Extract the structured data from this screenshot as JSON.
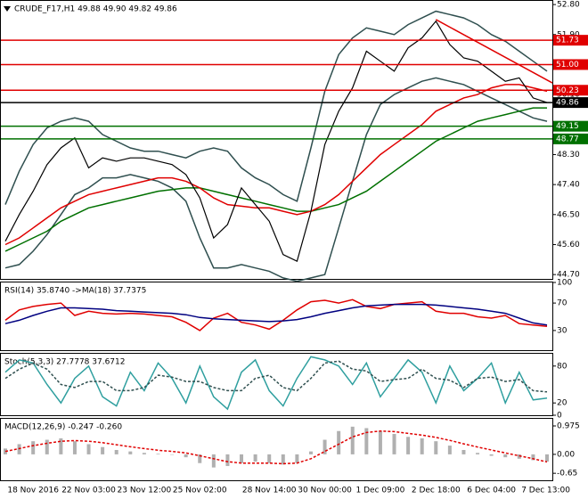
{
  "chart_data": [
    {
      "type": "line",
      "title": "CRUDE_F17,H1 49.88 49.90 49.82 49.86",
      "ylim": [
        44.57,
        52.91
      ],
      "yticks": [
        {
          "value": 52.8,
          "label": "52.80"
        },
        {
          "value": 51.9,
          "label": "51.90"
        },
        {
          "value": 51.0,
          "label": "51.00"
        },
        {
          "value": 50.1,
          "label": "50.10"
        },
        {
          "value": 49.2,
          "label": "49.20"
        },
        {
          "value": 48.3,
          "label": "48.30"
        },
        {
          "value": 47.4,
          "label": "47.40"
        },
        {
          "value": 46.5,
          "label": "46.50"
        },
        {
          "value": 45.6,
          "label": "45.60"
        },
        {
          "value": 44.7,
          "label": "44.70"
        }
      ],
      "series": [
        {
          "name": "Upper band",
          "color": "#2f4f4f",
          "values": [
            46.8,
            47.8,
            48.6,
            49.1,
            49.3,
            49.4,
            49.3,
            48.9,
            48.7,
            48.5,
            48.4,
            48.4,
            48.3,
            48.2,
            48.4,
            48.5,
            48.4,
            47.9,
            47.6,
            47.4,
            47.1,
            46.9,
            48.5,
            50.2,
            51.3,
            51.8,
            52.1,
            52.0,
            51.9,
            52.2,
            52.4,
            52.6,
            52.5,
            52.4,
            52.2,
            51.9,
            51.7,
            51.4,
            51.1,
            50.8
          ]
        },
        {
          "name": "Lower band",
          "color": "#2f4f4f",
          "values": [
            44.9,
            45.0,
            45.4,
            45.9,
            46.5,
            47.1,
            47.3,
            47.6,
            47.6,
            47.7,
            47.6,
            47.5,
            47.3,
            46.9,
            45.8,
            44.9,
            44.9,
            45.0,
            44.9,
            44.8,
            44.6,
            44.5,
            44.6,
            44.7,
            46.1,
            47.5,
            48.9,
            49.8,
            50.1,
            50.3,
            50.5,
            50.6,
            50.5,
            50.4,
            50.2,
            50.0,
            49.8,
            49.6,
            49.4,
            49.3
          ]
        },
        {
          "name": "Green MA",
          "color": "#007000",
          "values": [
            45.4,
            45.6,
            45.8,
            46.0,
            46.3,
            46.5,
            46.7,
            46.8,
            46.9,
            47.0,
            47.1,
            47.2,
            47.25,
            47.3,
            47.3,
            47.2,
            47.1,
            47.0,
            46.9,
            46.8,
            46.7,
            46.6,
            46.6,
            46.7,
            46.8,
            47.0,
            47.2,
            47.5,
            47.8,
            48.1,
            48.4,
            48.7,
            48.9,
            49.1,
            49.3,
            49.4,
            49.5,
            49.6,
            49.7,
            49.7
          ]
        },
        {
          "name": "Red MA",
          "color": "#e00000",
          "values": [
            45.6,
            45.8,
            46.1,
            46.4,
            46.7,
            46.9,
            47.1,
            47.2,
            47.3,
            47.4,
            47.5,
            47.6,
            47.6,
            47.5,
            47.3,
            47.0,
            46.8,
            46.75,
            46.7,
            46.7,
            46.6,
            46.5,
            46.6,
            46.8,
            47.1,
            47.5,
            47.9,
            48.3,
            48.6,
            48.9,
            49.2,
            49.6,
            49.8,
            50.0,
            50.1,
            50.3,
            50.4,
            50.4,
            50.3,
            50.2
          ]
        },
        {
          "name": "Close",
          "color": "#000000",
          "values": [
            45.7,
            46.5,
            47.2,
            48.0,
            48.5,
            48.8,
            47.9,
            48.2,
            48.1,
            48.2,
            48.2,
            48.1,
            48.0,
            47.7,
            47.0,
            45.8,
            46.2,
            47.3,
            46.8,
            46.3,
            45.3,
            45.1,
            46.6,
            48.6,
            49.6,
            50.3,
            51.4,
            51.1,
            50.8,
            51.5,
            51.8,
            52.3,
            51.6,
            51.2,
            51.1,
            50.8,
            50.5,
            50.6,
            50.0,
            49.86
          ]
        }
      ],
      "levels": [
        {
          "value": 51.73,
          "color": "#e00000"
        },
        {
          "value": 51.0,
          "label": "51.00",
          "color": "#e00000"
        },
        {
          "value": 50.23,
          "color": "#e00000"
        },
        {
          "value": 49.86,
          "color": "#000000"
        },
        {
          "value": 49.15,
          "color": "#007000"
        },
        {
          "value": 48.77,
          "color": "#007000"
        }
      ],
      "trendline": {
        "color": "#e00000",
        "x": [
          31,
          40
        ],
        "values": [
          52.35,
          50.45
        ]
      }
    },
    {
      "type": "line",
      "title": "RSI(14) 35.8740 ->MA(18) 37.7375",
      "ylim": [
        0,
        100
      ],
      "yticks": [
        100,
        70,
        30
      ],
      "series": [
        {
          "name": "RSI",
          "color": "#e00000",
          "values": [
            45,
            60,
            65,
            68,
            70,
            52,
            58,
            55,
            54,
            55,
            54,
            52,
            50,
            42,
            30,
            48,
            55,
            42,
            38,
            32,
            45,
            60,
            72,
            74,
            70,
            75,
            65,
            62,
            68,
            70,
            72,
            58,
            55,
            55,
            50,
            48,
            52,
            40,
            38,
            36
          ]
        },
        {
          "name": "MA",
          "color": "#000080",
          "values": [
            40,
            45,
            52,
            58,
            63,
            63,
            62,
            61,
            59,
            58,
            57,
            56,
            55,
            53,
            49,
            47,
            46,
            45,
            44,
            43,
            44,
            46,
            50,
            55,
            59,
            63,
            66,
            67,
            68,
            68,
            68,
            67,
            65,
            63,
            61,
            58,
            55,
            48,
            41,
            38
          ]
        }
      ]
    },
    {
      "type": "line",
      "title": "Stoch(5,3,3) 27.7778 37.6712",
      "ylim": [
        0,
        100
      ],
      "yticks": [
        80,
        20,
        0
      ],
      "series": [
        {
          "name": "Main",
          "color": "#2f9f9f",
          "values": [
            70,
            90,
            85,
            50,
            20,
            60,
            80,
            30,
            15,
            70,
            40,
            85,
            60,
            20,
            80,
            30,
            10,
            70,
            90,
            40,
            15,
            60,
            95,
            90,
            80,
            50,
            85,
            30,
            60,
            90,
            70,
            20,
            80,
            40,
            60,
            85,
            20,
            70,
            25,
            28
          ]
        },
        {
          "name": "Signal",
          "color": "#2f4f4f",
          "dash": true,
          "values": [
            60,
            75,
            85,
            75,
            50,
            45,
            55,
            55,
            40,
            40,
            45,
            65,
            62,
            55,
            55,
            45,
            40,
            40,
            60,
            65,
            45,
            40,
            60,
            85,
            88,
            75,
            72,
            55,
            58,
            60,
            75,
            60,
            57,
            45,
            60,
            62,
            55,
            58,
            40,
            38
          ]
        }
      ]
    },
    {
      "type": "bar",
      "title": "MACD(12,26,9) -0.247 -0.260",
      "ylim": [
        -0.89,
        1.22
      ],
      "yticks": [
        0.975,
        {
          "value": 0,
          "label": "0.00"
        },
        -0.65
      ],
      "categories": [
        null,
        null,
        "18 Nov 2016",
        null,
        null,
        null,
        "22 Nov 03:00",
        null,
        null,
        null,
        "23 Nov 12:00",
        null,
        null,
        null,
        "25 Nov 02:00",
        null,
        null,
        null,
        null,
        "28 Nov 14:00",
        null,
        null,
        null,
        "30 Nov 00:00",
        null,
        null,
        null,
        "1 Dec 09:00",
        null,
        null,
        null,
        "2 Dec 18:00",
        null,
        null,
        null,
        "6 Dec 04:00",
        null,
        null,
        null,
        "7 Dec 13:00"
      ],
      "series": [
        {
          "name": "MACD",
          "color": "#b0b0b0",
          "type": "bar",
          "values": [
            0.2,
            0.35,
            0.45,
            0.5,
            0.55,
            0.45,
            0.35,
            0.25,
            0.15,
            0.1,
            0.05,
            0.02,
            0,
            -0.1,
            -0.3,
            -0.45,
            -0.4,
            -0.3,
            -0.25,
            -0.3,
            -0.35,
            -0.3,
            0.1,
            0.5,
            0.8,
            0.95,
            0.9,
            0.8,
            0.7,
            0.6,
            0.55,
            0.45,
            0.3,
            0.15,
            0.05,
            -0.05,
            -0.1,
            -0.15,
            -0.2,
            -0.247
          ]
        },
        {
          "name": "Signal",
          "color": "#e00000",
          "type": "line",
          "dash": true,
          "values": [
            0.1,
            0.2,
            0.3,
            0.38,
            0.45,
            0.47,
            0.45,
            0.4,
            0.33,
            0.26,
            0.2,
            0.14,
            0.1,
            0.05,
            -0.05,
            -0.15,
            -0.25,
            -0.3,
            -0.3,
            -0.3,
            -0.32,
            -0.3,
            -0.15,
            0.1,
            0.35,
            0.6,
            0.75,
            0.8,
            0.78,
            0.72,
            0.66,
            0.58,
            0.48,
            0.36,
            0.25,
            0.15,
            0.05,
            -0.05,
            -0.15,
            -0.26
          ]
        }
      ]
    }
  ]
}
